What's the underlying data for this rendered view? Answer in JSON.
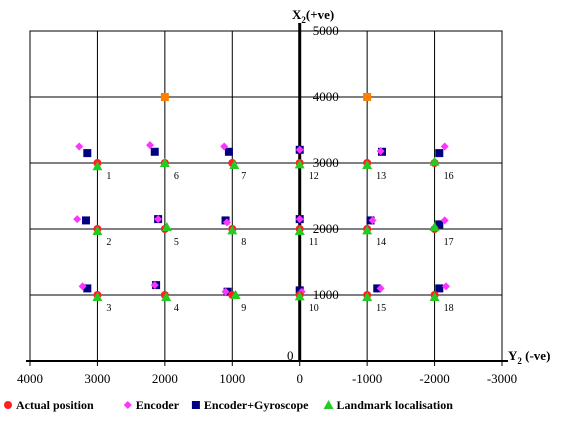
{
  "chart_data": {
    "type": "scatter",
    "x_axis_label": "Y",
    "x_axis_label_sub": "2",
    "x_axis_label_suffix": " (-ve)",
    "y_axis_label": "X",
    "y_axis_label_sub": "2",
    "y_axis_label_suffix": "(+ve)",
    "x_range": [
      4000,
      -3000
    ],
    "y_range": [
      0,
      5000
    ],
    "x_ticks": [
      4000,
      3000,
      2000,
      1000,
      0,
      -1000,
      -2000,
      -3000
    ],
    "x_tick_labels": [
      "4000",
      "3000",
      "2000",
      "1000",
      "0",
      "-1000",
      "-2000",
      "-3000"
    ],
    "y_ticks": [
      1000,
      2000,
      3000,
      4000,
      5000
    ],
    "y_tick_labels": [
      "1000",
      "2000",
      "3000",
      "4000",
      "5000"
    ],
    "origin_label": "0",
    "grid": true,
    "legend_position": "bottom",
    "series": [
      {
        "name": "Actual position",
        "marker": "circle",
        "color": "#ff2020",
        "points": [
          [
            3000,
            3000
          ],
          [
            2000,
            3000
          ],
          [
            1000,
            3000
          ],
          [
            0,
            3000
          ],
          [
            -1000,
            3000
          ],
          [
            -2000,
            3000
          ],
          [
            3000,
            2000
          ],
          [
            2000,
            2000
          ],
          [
            1000,
            2000
          ],
          [
            0,
            2000
          ],
          [
            -1000,
            2000
          ],
          [
            -2000,
            2000
          ],
          [
            3000,
            1000
          ],
          [
            2000,
            1000
          ],
          [
            1000,
            1000
          ],
          [
            0,
            1000
          ],
          [
            -1000,
            1000
          ],
          [
            -2000,
            1000
          ]
        ]
      },
      {
        "name": "Encoder",
        "marker": "diamond",
        "color": "#ff33ff",
        "points": [
          [
            3270,
            3250
          ],
          [
            2220,
            3270
          ],
          [
            1120,
            3250
          ],
          [
            0,
            3200
          ],
          [
            -1200,
            3180
          ],
          [
            -2150,
            3250
          ],
          [
            3300,
            2150
          ],
          [
            2100,
            2150
          ],
          [
            1080,
            2100
          ],
          [
            0,
            2150
          ],
          [
            -1080,
            2130
          ],
          [
            -2150,
            2130
          ],
          [
            3220,
            1130
          ],
          [
            2150,
            1150
          ],
          [
            1100,
            1050
          ],
          [
            -30,
            1050
          ],
          [
            -1200,
            1100
          ],
          [
            -2170,
            1130
          ]
        ]
      },
      {
        "name": "Encoder+Gyroscope",
        "marker": "square",
        "color": "#000080",
        "points": [
          [
            3150,
            3150
          ],
          [
            2150,
            3170
          ],
          [
            1050,
            3170
          ],
          [
            0,
            3200
          ],
          [
            -1220,
            3170
          ],
          [
            -2070,
            3150
          ],
          [
            3170,
            2130
          ],
          [
            2100,
            2150
          ],
          [
            1100,
            2130
          ],
          [
            0,
            2150
          ],
          [
            -1050,
            2130
          ],
          [
            -2070,
            2070
          ],
          [
            3150,
            1100
          ],
          [
            2130,
            1150
          ],
          [
            1070,
            1050
          ],
          [
            0,
            1070
          ],
          [
            -1150,
            1100
          ],
          [
            -2070,
            1100
          ]
        ]
      },
      {
        "name": "Landmark localisation",
        "marker": "triangle",
        "color": "#22cc22",
        "points": [
          [
            3000,
            2950
          ],
          [
            2000,
            3000
          ],
          [
            970,
            2970
          ],
          [
            0,
            2980
          ],
          [
            -1000,
            2970
          ],
          [
            -2000,
            3020
          ],
          [
            3000,
            1970
          ],
          [
            1970,
            2030
          ],
          [
            1000,
            1980
          ],
          [
            0,
            1970
          ],
          [
            -1000,
            1980
          ],
          [
            -2000,
            2030
          ],
          [
            3000,
            970
          ],
          [
            1980,
            970
          ],
          [
            950,
            1000
          ],
          [
            0,
            980
          ],
          [
            -1000,
            970
          ],
          [
            -2000,
            970
          ]
        ]
      },
      {
        "name": "",
        "marker": "square",
        "color": "#ff8000",
        "points": [
          [
            2000,
            4000
          ],
          [
            -1000,
            4000
          ]
        ]
      }
    ],
    "point_labels": [
      {
        "text": "1",
        "x": 3000,
        "y": 3000
      },
      {
        "text": "6",
        "x": 2000,
        "y": 3000
      },
      {
        "text": "7",
        "x": 1000,
        "y": 3000
      },
      {
        "text": "12",
        "x": 0,
        "y": 3000
      },
      {
        "text": "13",
        "x": -1000,
        "y": 3000
      },
      {
        "text": "16",
        "x": -2000,
        "y": 3000
      },
      {
        "text": "2",
        "x": 3000,
        "y": 2000
      },
      {
        "text": "5",
        "x": 2000,
        "y": 2000
      },
      {
        "text": "8",
        "x": 1000,
        "y": 2000
      },
      {
        "text": "11",
        "x": 0,
        "y": 2000
      },
      {
        "text": "14",
        "x": -1000,
        "y": 2000
      },
      {
        "text": "17",
        "x": -2000,
        "y": 2000
      },
      {
        "text": "3",
        "x": 3000,
        "y": 1000
      },
      {
        "text": "4",
        "x": 2000,
        "y": 1000
      },
      {
        "text": "9",
        "x": 1000,
        "y": 1000
      },
      {
        "text": "10",
        "x": 0,
        "y": 1000
      },
      {
        "text": "15",
        "x": -1000,
        "y": 1000
      },
      {
        "text": "18",
        "x": -2000,
        "y": 1000
      }
    ]
  }
}
